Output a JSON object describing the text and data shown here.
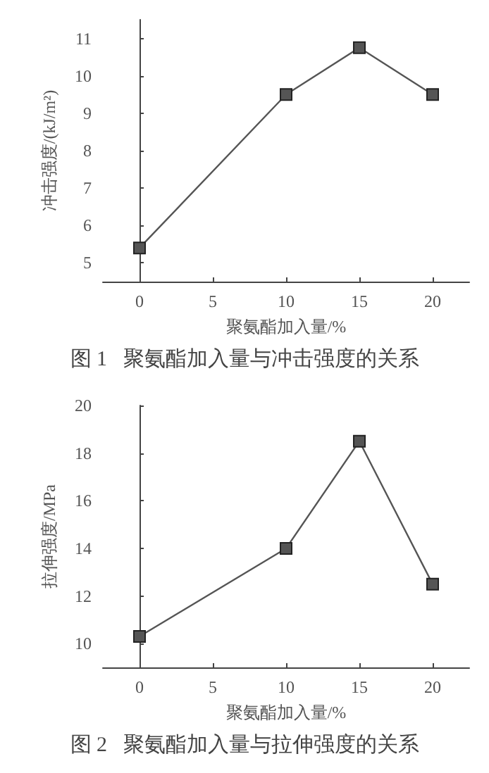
{
  "chart_data": [
    {
      "type": "line",
      "xlabel": "聚氨酯加入量/%",
      "ylabel": "冲击强度/(kJ/m²)",
      "annotations": [
        "图 1   聚氨酯加入量与冲击强度的关系"
      ],
      "x": [
        0,
        10,
        15,
        20
      ],
      "series": [
        {
          "color": "#555555",
          "values": [
            5.4,
            9.5,
            10.75,
            9.5
          ]
        }
      ],
      "xlim": [
        -2.5,
        22.5
      ],
      "xticks": [
        0,
        5,
        10,
        15,
        20
      ],
      "ylim": [
        4.5,
        11.5
      ],
      "yticks": [
        5,
        6,
        7,
        8,
        9,
        10,
        11
      ],
      "marker": "square",
      "line_style": "solid"
    },
    {
      "type": "line",
      "xlabel": "聚氨酯加入量/%",
      "ylabel": "拉伸强度/MPa",
      "annotations": [
        "图 2   聚氨酯加入量与拉伸强度的关系"
      ],
      "x": [
        0,
        10,
        15,
        20
      ],
      "series": [
        {
          "color": "#555555",
          "values": [
            10.3,
            14,
            18.5,
            12.5
          ]
        }
      ],
      "xlim": [
        -2.5,
        22.5
      ],
      "xticks": [
        0,
        5,
        10,
        15,
        20
      ],
      "ylim": [
        9,
        20
      ],
      "yticks": [
        10,
        12,
        14,
        16,
        18,
        20
      ],
      "marker": "square",
      "line_style": "solid"
    }
  ]
}
